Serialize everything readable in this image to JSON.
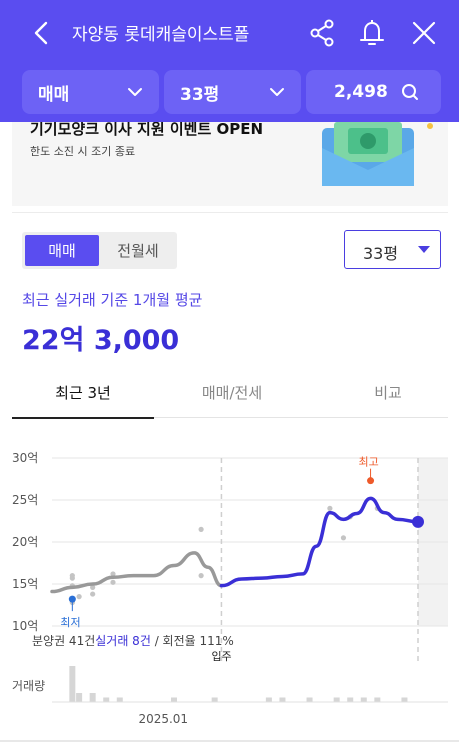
{
  "header": {
    "title": "자양동 롯데캐슬이스트폴",
    "filters": [
      {
        "label": "매매"
      },
      {
        "label": "33평"
      },
      {
        "label": "2,498"
      }
    ]
  },
  "banner": {
    "title": "기기모양크 이사 지원 이벤트 OPEN",
    "subtitle": "한도 소진 시 조기 종료"
  },
  "segment": {
    "options": [
      "매매",
      "전월세"
    ],
    "selected": "매매"
  },
  "pyeong_select": {
    "value": "33평"
  },
  "summary": {
    "label": "최근 실거래 기준 1개월 평균",
    "price": "22억 3,000"
  },
  "tabs": [
    {
      "label": "최근 3년",
      "active": true
    },
    {
      "label": "매매/전세",
      "active": false
    },
    {
      "label": "비교",
      "active": false
    }
  ],
  "chart_data": {
    "type": "line",
    "y_ticks": [
      "30억",
      "25억",
      "20억",
      "15억",
      "10억"
    ],
    "ylim": [
      10,
      30
    ],
    "x_marker_label": "입주",
    "x_label": "2025.01",
    "trend": [
      [
        0,
        14.1
      ],
      [
        3,
        14.6
      ],
      [
        6,
        15.0
      ],
      [
        9,
        15.8
      ],
      [
        12,
        16.0
      ],
      [
        15,
        16.0
      ],
      [
        18,
        17.2
      ],
      [
        21,
        18.7
      ],
      [
        23,
        17.0
      ],
      [
        25,
        14.8
      ],
      [
        28,
        15.6
      ],
      [
        31,
        15.7
      ],
      [
        34,
        15.9
      ],
      [
        37,
        16.2
      ],
      [
        39,
        19.5
      ],
      [
        41,
        23.5
      ],
      [
        43,
        22.7
      ],
      [
        45,
        23.4
      ],
      [
        47,
        25.2
      ],
      [
        49,
        23.5
      ],
      [
        51,
        22.7
      ],
      [
        54,
        22.4
      ]
    ],
    "trend_split_index": 9,
    "deals": [
      [
        3,
        12.8
      ],
      [
        3,
        14.8
      ],
      [
        3,
        15.7
      ],
      [
        3,
        16.0
      ],
      [
        4,
        13.5
      ],
      [
        6,
        13.8
      ],
      [
        6,
        14.6
      ],
      [
        9,
        15.2
      ],
      [
        9,
        16.2
      ],
      [
        22,
        21.5
      ],
      [
        22,
        16.0
      ],
      [
        41,
        24.0
      ],
      [
        43,
        20.5
      ],
      [
        44,
        23.0
      ],
      [
        48,
        24.0
      ]
    ],
    "min_label": "최저",
    "min_point": [
      3,
      13.2
    ],
    "max_label": "최고",
    "max_point": [
      47,
      27.3
    ],
    "latest_point": [
      54,
      22.4
    ],
    "volume_label": "거래량",
    "volume": [
      0,
      0,
      0,
      8,
      2,
      0,
      2,
      0,
      1,
      0,
      1,
      0,
      0,
      0,
      0,
      0,
      0,
      0,
      1,
      0,
      0,
      0,
      0,
      0,
      1,
      0,
      0,
      0,
      0,
      0,
      0,
      0,
      1,
      0,
      1,
      0,
      0,
      0,
      1,
      0,
      0,
      0,
      1,
      0,
      1,
      0,
      1,
      0,
      1,
      0,
      0,
      0,
      1,
      0,
      0
    ],
    "footnote_parts": [
      "분양권 41건",
      "실거래 8건",
      " / 회전율 111%"
    ]
  },
  "colors": {
    "brand": "#5a4df0",
    "price": "#3a2fd6",
    "trend_past": "#999999",
    "trend_recent": "#3a2fd6",
    "max": "#ee5a2a",
    "min": "#2a6fd6"
  },
  "icons": [
    "back-icon",
    "share-icon",
    "bell-icon",
    "close-icon",
    "chevron-down-icon",
    "search-icon",
    "envelope-icon"
  ]
}
